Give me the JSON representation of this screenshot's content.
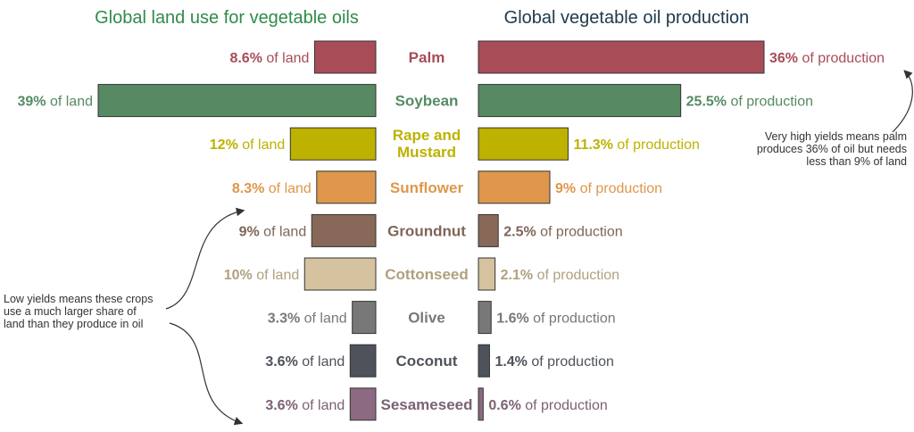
{
  "chart_data": {
    "type": "bar",
    "layout": "butterfly",
    "left_title": "Global land use for vegetable oils",
    "right_title": "Global vegetable oil production",
    "left_unit": "of land",
    "right_unit": "of production",
    "crops": [
      {
        "name": [
          "Palm"
        ],
        "land_label": "8.6%",
        "land": 8.6,
        "production_label": "36%",
        "production": 36.0,
        "color": "#a84c58"
      },
      {
        "name": [
          "Soybean"
        ],
        "land_label": "39%",
        "land": 39.0,
        "production_label": "25.5%",
        "production": 25.5,
        "color": "#578a63"
      },
      {
        "name": [
          "Rape and",
          "Mustard"
        ],
        "land_label": "12%",
        "land": 12.0,
        "production_label": "11.3%",
        "production": 11.3,
        "color": "#bdb200"
      },
      {
        "name": [
          "Sunflower"
        ],
        "land_label": "8.3%",
        "land": 8.3,
        "production_label": "9%",
        "production": 9.0,
        "color": "#de974c"
      },
      {
        "name": [
          "Groundnut"
        ],
        "land_label": "9%",
        "land": 9.0,
        "production_label": "2.5%",
        "production": 2.5,
        "color": "#886858"
      },
      {
        "name": [
          "Cottonseed"
        ],
        "land_label": "10%",
        "land": 10.0,
        "production_label": "2.1%",
        "production": 2.1,
        "color": "#d5c29e"
      },
      {
        "name": [
          "Olive"
        ],
        "land_label": "3.3%",
        "land": 3.3,
        "production_label": "1.6%",
        "production": 1.6,
        "color": "#787878"
      },
      {
        "name": [
          "Coconut"
        ],
        "land_label": "3.6%",
        "land": 3.6,
        "production_label": "1.4%",
        "production": 1.4,
        "color": "#4e525b"
      },
      {
        "name": [
          "Sesameseed"
        ],
        "land_label": "3.6%",
        "land": 3.6,
        "production_label": "0.6%",
        "production": 0.6,
        "color": "#8c6a82"
      }
    ],
    "label_colors": [
      "#a84c58",
      "#578a63",
      "#bdb200",
      "#de974c",
      "#7e6658",
      "#b1a07f",
      "#787878",
      "#4e525b",
      "#7c6274"
    ],
    "annotations": [
      {
        "id": "palm_note",
        "lines": [
          "Very high yields means palm",
          "produces 36% of oil but needs",
          "less than 9% of land"
        ]
      },
      {
        "id": "low_yield_note",
        "lines": [
          "Low yields means these crops",
          "use a much larger share of",
          "land than they produce in oil"
        ]
      }
    ]
  }
}
